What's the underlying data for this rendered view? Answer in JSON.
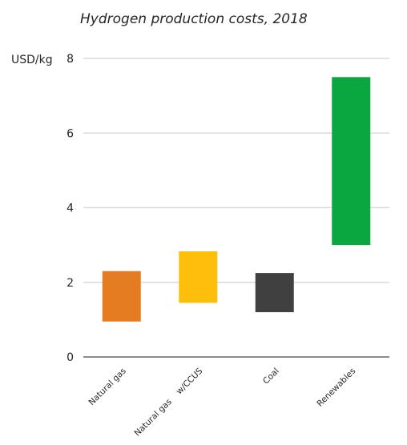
{
  "chart_data": {
    "type": "bar",
    "title": "Hydrogen production costs, 2018",
    "ylabel": "USD/kg",
    "ylim": [
      0,
      8
    ],
    "yticks": [
      "0",
      "2",
      "4",
      "6",
      "8"
    ],
    "grid": true,
    "categories": [
      "Natural gas",
      "Natural gas    w/CCUS",
      "Coal",
      "Renewables"
    ],
    "ranges": [
      {
        "low": 0.95,
        "high": 2.3
      },
      {
        "low": 1.45,
        "high": 2.83
      },
      {
        "low": 1.2,
        "high": 2.25
      },
      {
        "low": 3.0,
        "high": 7.5
      }
    ],
    "colors": [
      "#e57c22",
      "#fdbf0b",
      "#404040",
      "#0aa63f"
    ]
  }
}
